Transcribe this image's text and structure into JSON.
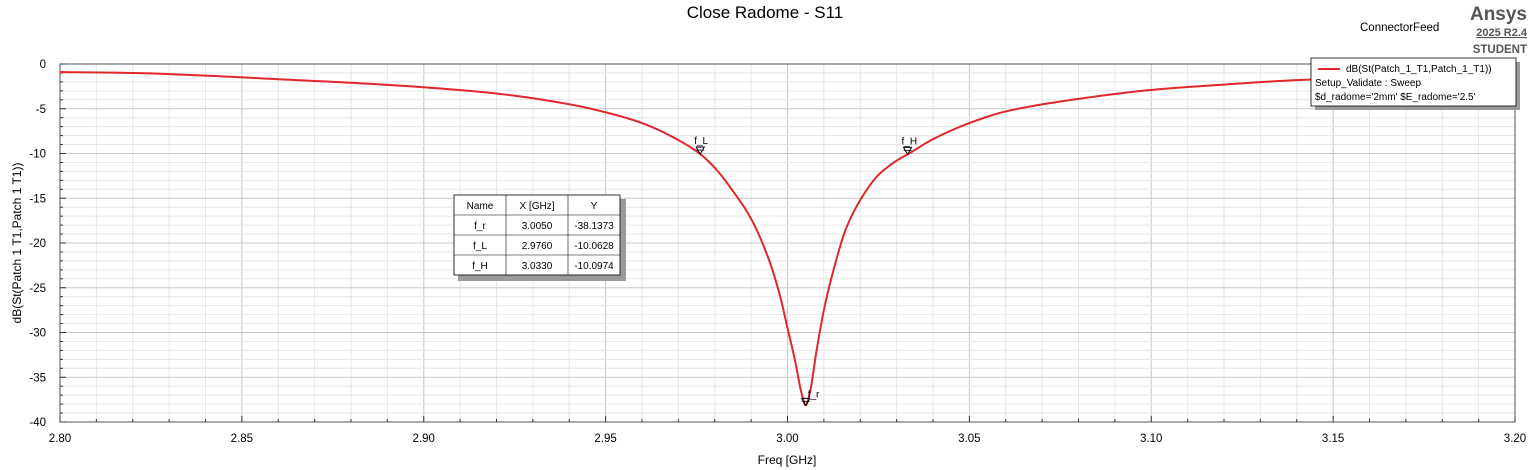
{
  "chart_data": {
    "type": "line",
    "title": "Close Radome - S11",
    "subtitle": "ConnectorFeed",
    "xlabel": "Freq [GHz]",
    "ylabel": "dB(St(Patch 1 T1,Patch 1 T1))",
    "xlim": [
      2.8,
      3.2
    ],
    "ylim": [
      -40,
      0
    ],
    "x_ticks": [
      "2.80",
      "2.85",
      "2.90",
      "2.95",
      "3.00",
      "3.05",
      "3.10",
      "3.15",
      "3.20"
    ],
    "y_ticks": [
      "0",
      "-5",
      "-10",
      "-15",
      "-20",
      "-25",
      "-30",
      "-35",
      "-40"
    ],
    "grid": true,
    "legend_position": "top-right",
    "series": [
      {
        "name": "dB(St(Patch_1_T1,Patch_1_T1))",
        "color": "#e0272d",
        "x": [
          2.8,
          2.82,
          2.84,
          2.86,
          2.88,
          2.9,
          2.92,
          2.94,
          2.95,
          2.96,
          2.97,
          2.976,
          2.98,
          2.985,
          2.99,
          2.995,
          2.998,
          3.0,
          3.002,
          3.004,
          3.005,
          3.006,
          3.008,
          3.01,
          3.013,
          3.016,
          3.02,
          3.025,
          3.03,
          3.033,
          3.04,
          3.05,
          3.06,
          3.08,
          3.1,
          3.12,
          3.14,
          3.16,
          3.18,
          3.2
        ],
        "y": [
          -0.9,
          -1.0,
          -1.3,
          -1.7,
          -2.1,
          -2.6,
          -3.3,
          -4.5,
          -5.4,
          -6.6,
          -8.5,
          -10.06,
          -11.6,
          -14.2,
          -17.3,
          -22.0,
          -26.0,
          -29.5,
          -33.0,
          -37.0,
          -38.14,
          -37.0,
          -32.0,
          -27.5,
          -22.5,
          -18.5,
          -15.2,
          -12.4,
          -10.8,
          -10.1,
          -8.4,
          -6.6,
          -5.3,
          -3.9,
          -2.9,
          -2.3,
          -1.8,
          -1.5,
          -1.2,
          -1.0
        ]
      }
    ],
    "markers": [
      {
        "name": "f_r",
        "x": 3.005,
        "y": -38.1373
      },
      {
        "name": "f_L",
        "x": 2.976,
        "y": -10.0628
      },
      {
        "name": "f_H",
        "x": 3.033,
        "y": -10.0974
      }
    ],
    "marker_table": {
      "headers": [
        "Name",
        "X [GHz]",
        "Y"
      ],
      "rows": [
        [
          "f_r",
          "3.0050",
          "-38.1373"
        ],
        [
          "f_L",
          "2.9760",
          "-10.0628"
        ],
        [
          "f_H",
          "3.0330",
          "-10.0974"
        ]
      ]
    },
    "legend_extra": [
      "Setup_Validate : Sweep",
      "$d_radome='2mm' $E_radome='2.5'"
    ]
  },
  "brand": {
    "name": "Ansys",
    "version": "2025 R2.4",
    "edition": "STUDENT"
  }
}
